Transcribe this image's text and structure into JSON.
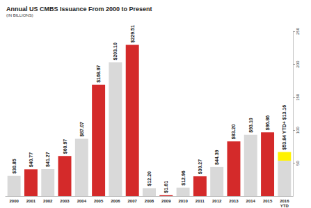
{
  "chart_data": {
    "type": "bar",
    "title": "Annual US CMBS Issuance From 2000 to Present",
    "subtitle": "(IN BILLIONS)",
    "categories": [
      "2000",
      "2001",
      "2002",
      "2003",
      "2004",
      "2005",
      "2006",
      "2007",
      "2008",
      "2009",
      "2010",
      "2011",
      "2012",
      "2013",
      "2014",
      "2015",
      "2016 YTD"
    ],
    "stacked": true,
    "data_labels": true,
    "grid": false,
    "series": [
      {
        "values": [
          30.85,
          40.77,
          41.27,
          60.97,
          87.07,
          168.97,
          203.1,
          229.51,
          12.2,
          1.61,
          12.96,
          30.27,
          44.39,
          83.2,
          93.1,
          96.86,
          53.84
        ],
        "value_labels": [
          "$30.85",
          "$40.77",
          "$41.27",
          "$60.97",
          "$87.07",
          "$168.97",
          "$203.10",
          "$229.51",
          "$12.20",
          "$1.61",
          "$12.96",
          "$30.27",
          "$44.39",
          "$83.20",
          "$93.10",
          "$96.86",
          "$53.84"
        ],
        "colors": [
          "#d9d9d9",
          "#d42a2a",
          "#d9d9d9",
          "#d42a2a",
          "#d9d9d9",
          "#d42a2a",
          "#d9d9d9",
          "#d42a2a",
          "#d9d9d9",
          "#d42a2a",
          "#d9d9d9",
          "#d42a2a",
          "#d9d9d9",
          "#d42a2a",
          "#d9d9d9",
          "#d42a2a",
          "#d9d9d9"
        ]
      },
      {
        "values": [
          null,
          null,
          null,
          null,
          null,
          null,
          null,
          null,
          null,
          null,
          null,
          null,
          null,
          null,
          null,
          null,
          13.16
        ],
        "value_labels": [
          null,
          null,
          null,
          null,
          null,
          null,
          null,
          null,
          null,
          null,
          null,
          null,
          null,
          null,
          null,
          null,
          "YTD+ $13.16"
        ],
        "color": "#fff200"
      }
    ],
    "ylim": [
      0,
      250
    ],
    "yticks": [
      50,
      100,
      150,
      200,
      250
    ]
  }
}
